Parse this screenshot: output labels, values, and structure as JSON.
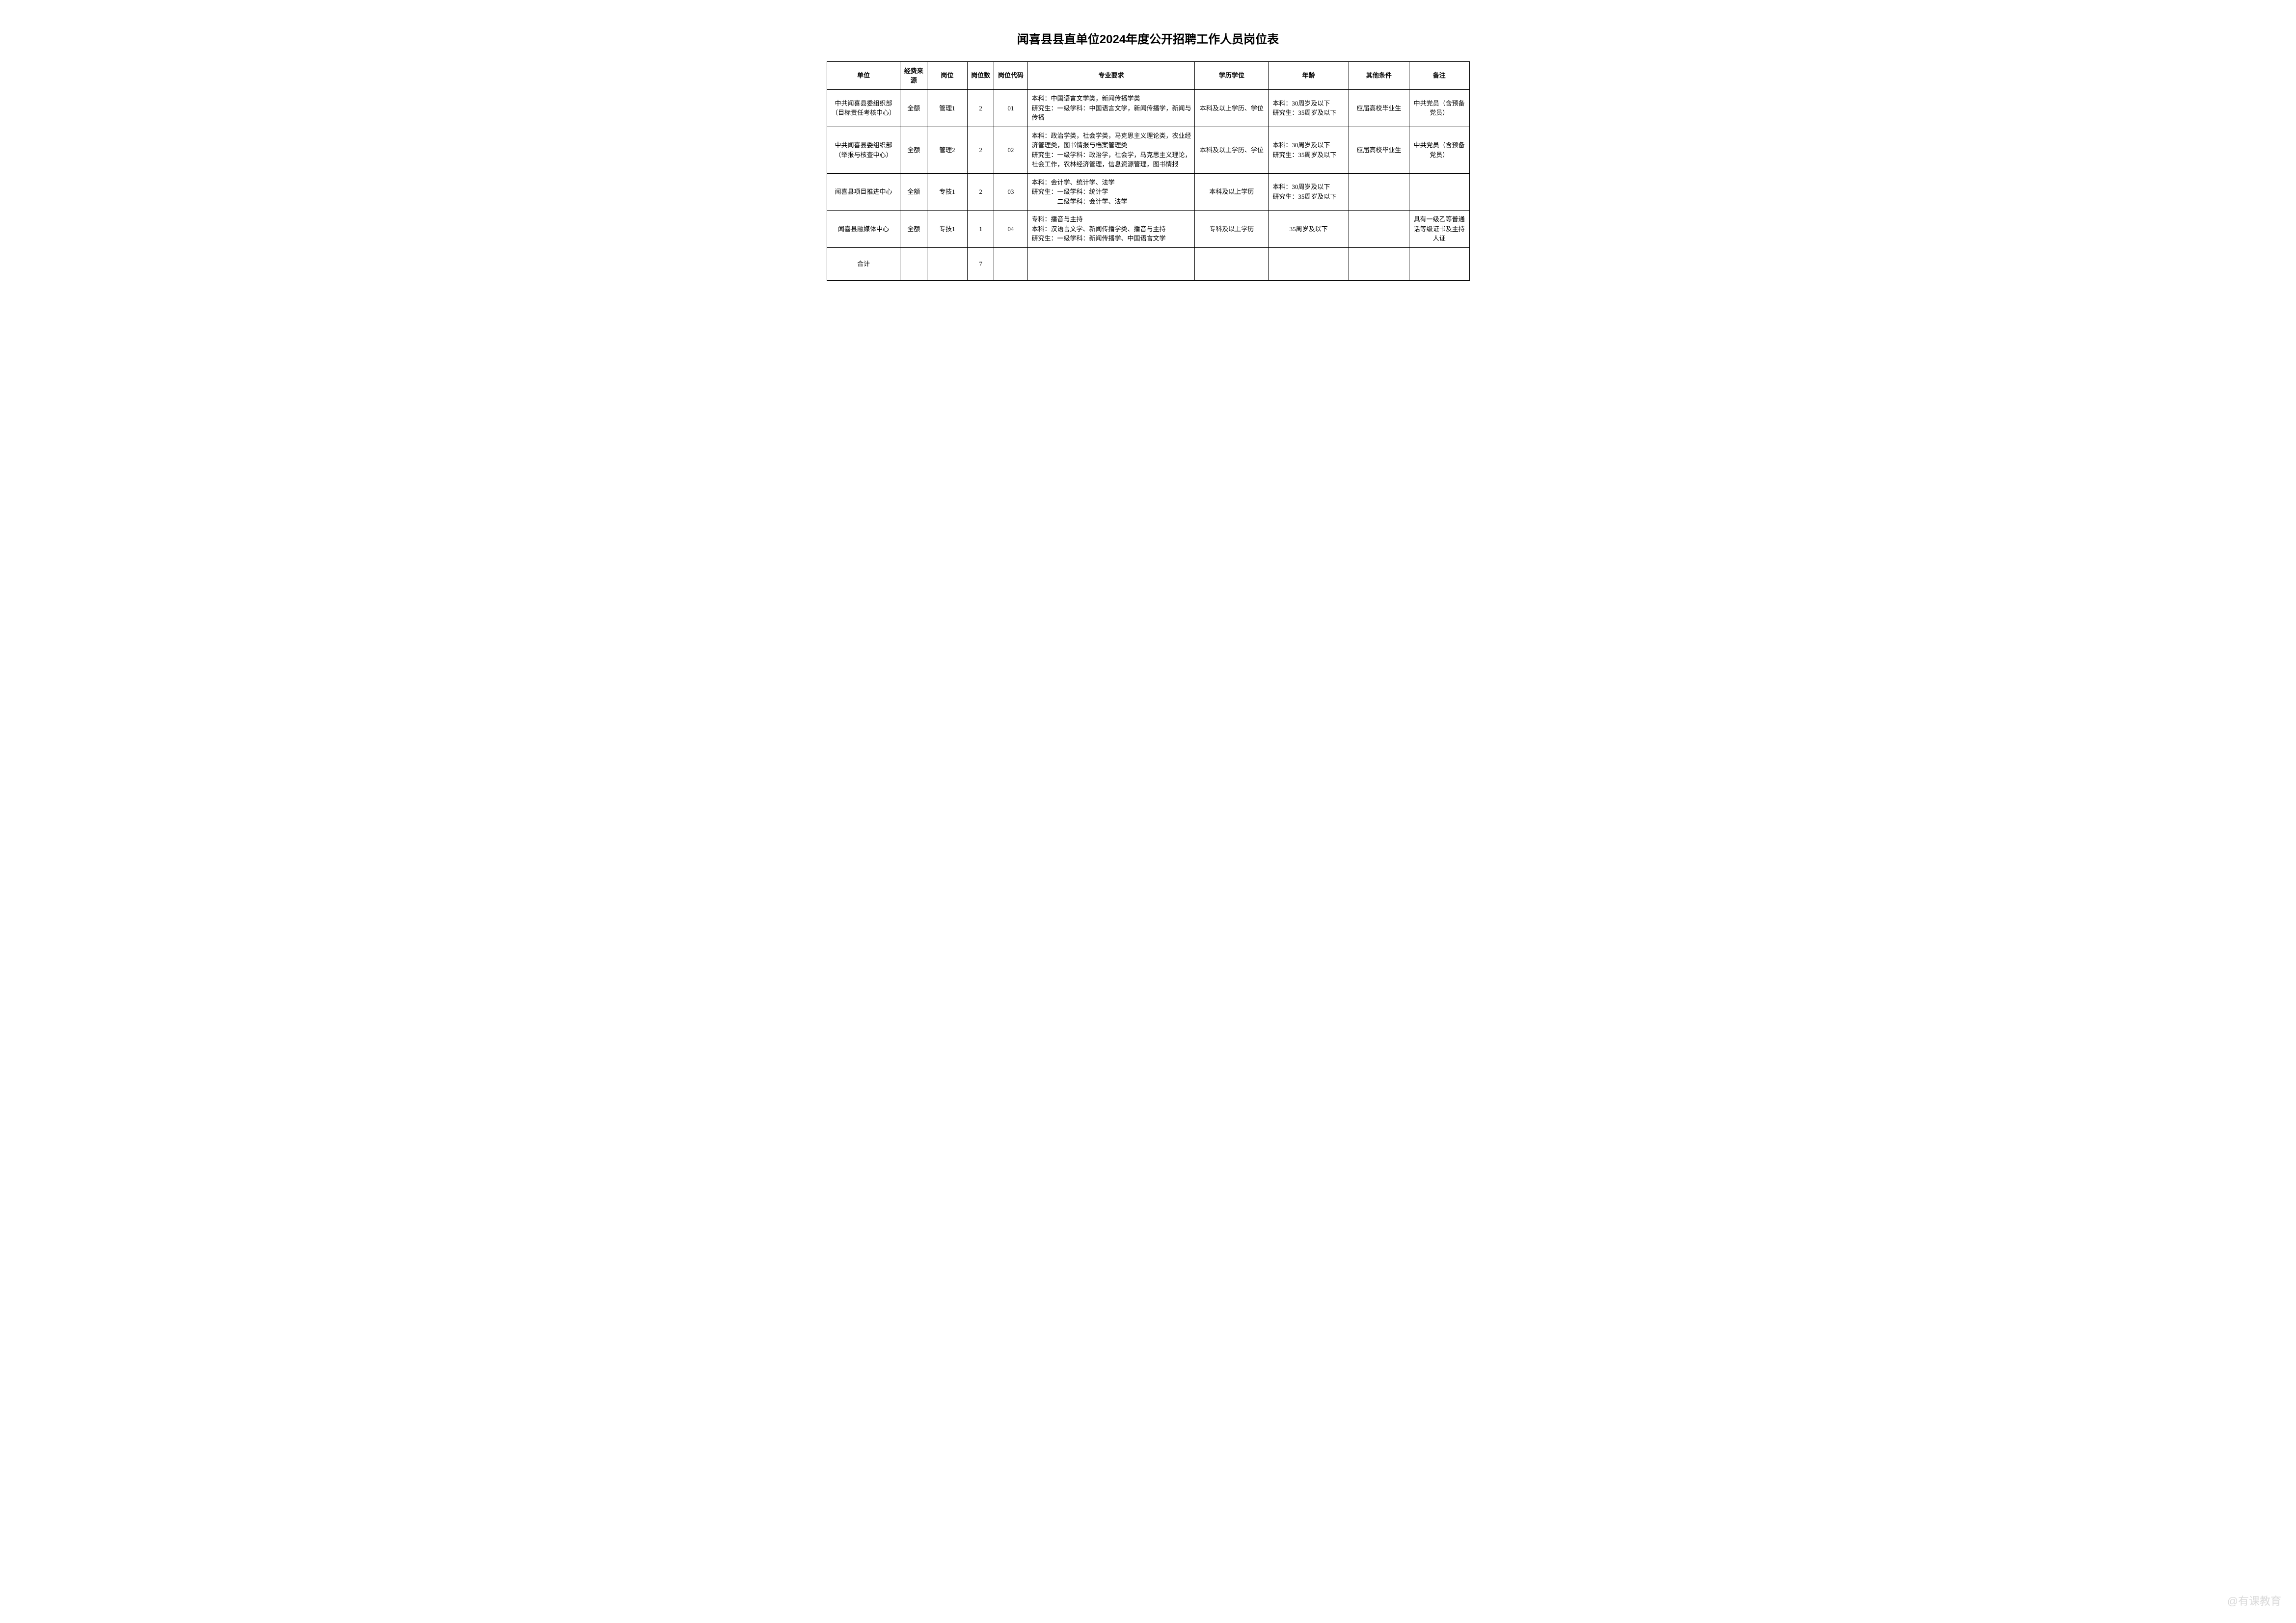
{
  "title": "闻喜县县直单位2024年度公开招聘工作人员岗位表",
  "columns": {
    "unit": "单位",
    "fund": "经费来源",
    "post": "岗位",
    "count": "岗位数",
    "code": "岗位代码",
    "req": "专业要求",
    "edu": "学历学位",
    "age": "年龄",
    "other": "其他条件",
    "remark": "备注"
  },
  "rows": [
    {
      "unit": "中共闻喜县委组织部（目标责任考核中心）",
      "fund": "全额",
      "post": "管理1",
      "count": "2",
      "code": "01",
      "req": "本科：中国语言文学类，新闻传播学类\n研究生：一级学科：中国语言文学，新闻传播学，新闻与传播",
      "edu": "本科及以上学历、学位",
      "age": "本科：30周岁及以下\n研究生：35周岁及以下",
      "other": "应届高校毕业生",
      "remark": "中共党员（含预备党员）"
    },
    {
      "unit": "中共闻喜县委组织部（举报与核查中心）",
      "fund": "全额",
      "post": "管理2",
      "count": "2",
      "code": "02",
      "req": "本科：政治学类，社会学类，马克思主义理论类，农业经济管理类，图书情报与档案管理类\n研究生：一级学科：政治学，社会学，马克思主义理论，社会工作，农林经济管理，信息资源管理，图书情报",
      "edu": "本科及以上学历、学位",
      "age": "本科：30周岁及以下\n研究生：35周岁及以下",
      "other": "应届高校毕业生",
      "remark": "中共党员（含预备党员）"
    },
    {
      "unit": "闻喜县项目推进中心",
      "fund": "全额",
      "post": "专技1",
      "count": "2",
      "code": "03",
      "req": "本科：会计学、统计学、法学\n研究生：一级学科：统计学\n　　　　二级学科：会计学、法学",
      "edu": "本科及以上学历",
      "age": "本科：30周岁及以下\n研究生：35周岁及以下",
      "other": "",
      "remark": ""
    },
    {
      "unit": "闻喜县融媒体中心",
      "fund": "全额",
      "post": "专技1",
      "count": "1",
      "code": "04",
      "req": "专科：播音与主持\n本科：汉语言文学、新闻传播学类、播音与主持\n研究生：一级学科：新闻传播学、中国语言文学",
      "edu": "专科及以上学历",
      "age": "35周岁及以下",
      "other": "",
      "remark": "具有一级乙等普通话等级证书及主持人证"
    }
  ],
  "total": {
    "label": "合计",
    "count": "7"
  },
  "watermark": "@有课教育",
  "style": {
    "background_color": "#ffffff",
    "border_color": "#000000",
    "text_color": "#000000",
    "title_fontsize": 24,
    "cell_fontsize": 13,
    "watermark_color": "rgba(150,150,150,0.35)"
  }
}
